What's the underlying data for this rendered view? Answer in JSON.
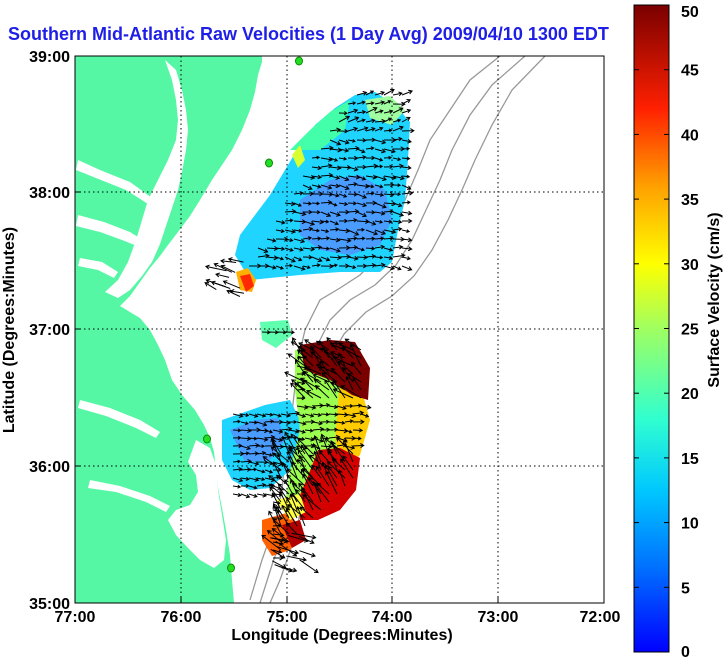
{
  "title": "Southern Mid-Atlantic Raw Velocities (1 Day Avg) 2009/04/10 1300 EDT",
  "x_axis": {
    "label": "Longitude (Degrees:Minutes)",
    "ticks": [
      "77:00",
      "76:00",
      "75:00",
      "74:00",
      "73:00",
      "72:00"
    ]
  },
  "y_axis": {
    "label": "Latitude (Degrees:Minutes)",
    "ticks": [
      "39:00",
      "38:00",
      "37:00",
      "36:00",
      "35:00"
    ]
  },
  "colorbar": {
    "label": "Surface Velocity (cm/s)",
    "ticks": [
      "0",
      "5",
      "10",
      "15",
      "20",
      "25",
      "30",
      "35",
      "40",
      "45",
      "50"
    ],
    "min": 0,
    "max": 50
  },
  "colors": {
    "land": "#55f7a5",
    "title": "#1e1ee6",
    "station": "#22dd22"
  },
  "map": {
    "lon_range": [
      -77,
      -72
    ],
    "lat_range": [
      35,
      39
    ],
    "grid": true,
    "stations": "green station markers along coastline"
  }
}
